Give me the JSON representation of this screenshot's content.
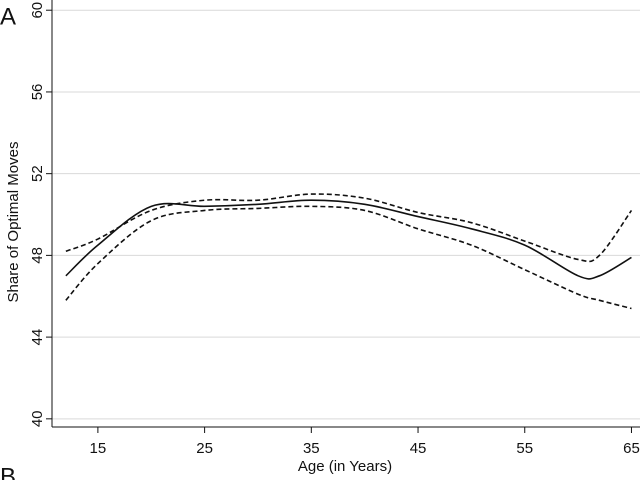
{
  "chart_data": {
    "type": "line",
    "panel_label": "A",
    "x_label": "Age (in Years)",
    "y_label": "Share of Optimal Moves",
    "x": [
      12,
      15,
      20,
      25,
      30,
      35,
      40,
      45,
      50,
      55,
      60,
      62,
      65
    ],
    "series": [
      {
        "color": "#111111",
        "line_style": "solid",
        "values": [
          47.0,
          48.5,
          50.4,
          50.4,
          50.5,
          50.7,
          50.5,
          49.9,
          49.3,
          48.5,
          47.0,
          47.0,
          47.9
        ]
      },
      {
        "color": "#111111",
        "line_style": "dashed",
        "values": [
          48.2,
          48.8,
          50.2,
          50.7,
          50.7,
          51.0,
          50.8,
          50.1,
          49.6,
          48.7,
          47.8,
          48.0,
          50.2
        ]
      },
      {
        "color": "#111111",
        "line_style": "dashed",
        "values": [
          45.8,
          47.6,
          49.7,
          50.2,
          50.3,
          50.4,
          50.2,
          49.3,
          48.5,
          47.3,
          46.1,
          45.8,
          45.4
        ]
      }
    ],
    "xlim": [
      10.7,
      65.8
    ],
    "xticks": [
      15,
      25,
      35,
      45,
      55,
      65
    ],
    "ylim": [
      39.6,
      60.5
    ],
    "yticks": [
      40,
      44,
      48,
      52,
      56,
      60
    ],
    "grid": true
  },
  "next_panel_label": "B"
}
